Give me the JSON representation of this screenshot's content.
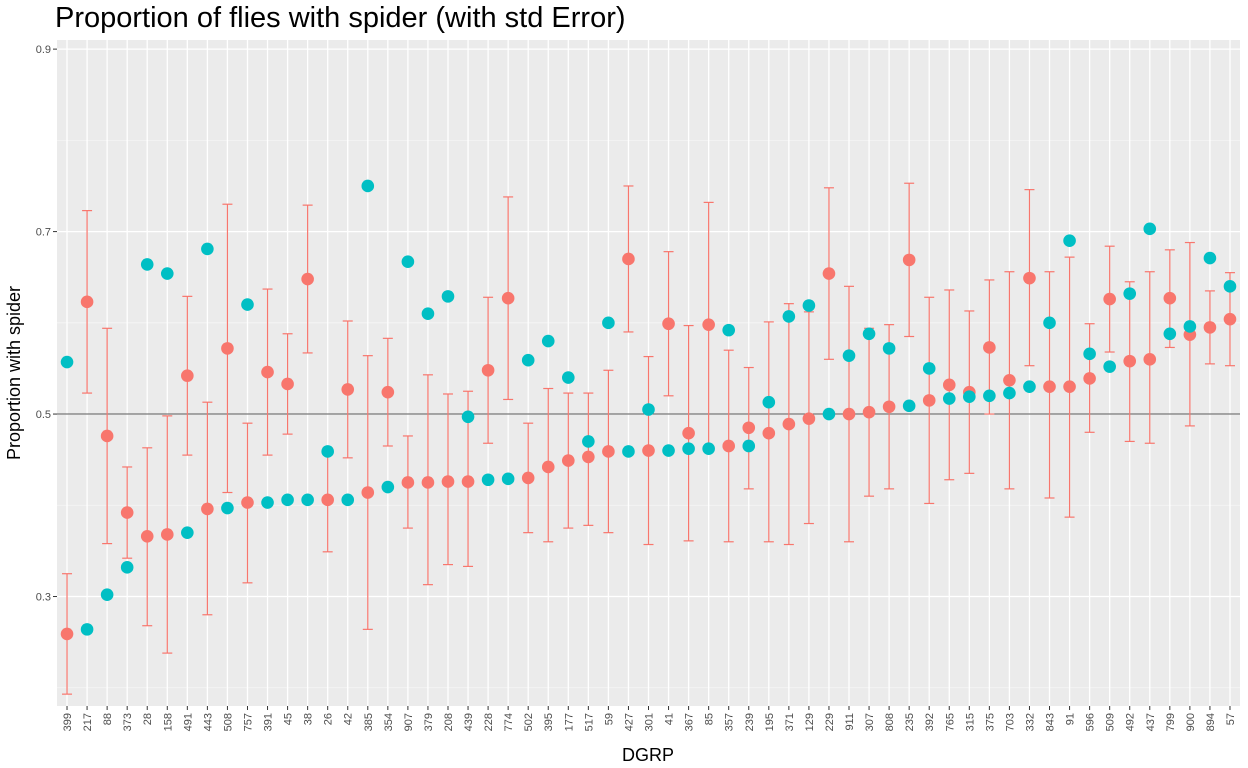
{
  "chart_data": {
    "type": "scatter",
    "title": "Proportion of flies with spider (with std Error)",
    "xlabel": "DGRP",
    "ylabel": "Proportion with spider",
    "ylim": [
      0.18,
      0.91
    ],
    "yticks": [
      0.3,
      0.5,
      0.7,
      0.9
    ],
    "yticklabels": [
      "0.3",
      "0.5",
      "0.7",
      "0.9"
    ],
    "reference_line": 0.5,
    "grid": true,
    "legend": "none",
    "categories": [
      "399",
      "217",
      "88",
      "373",
      "28",
      "158",
      "491",
      "443",
      "508",
      "757",
      "391",
      "45",
      "38",
      "26",
      "42",
      "385",
      "354",
      "907",
      "379",
      "208",
      "439",
      "228",
      "774",
      "502",
      "395",
      "177",
      "517",
      "59",
      "427",
      "301",
      "41",
      "367",
      "85",
      "357",
      "239",
      "195",
      "371",
      "129",
      "229",
      "911",
      "307",
      "808",
      "235",
      "392",
      "765",
      "315",
      "375",
      "703",
      "332",
      "843",
      "91",
      "596",
      "509",
      "492",
      "437",
      "799",
      "900",
      "894",
      "57"
    ],
    "series": [
      {
        "color": "#F8766D",
        "values": [
          0.259,
          0.623,
          0.476,
          0.392,
          0.366,
          0.368,
          0.542,
          0.396,
          0.572,
          0.403,
          0.546,
          0.533,
          0.648,
          0.406,
          0.527,
          0.414,
          0.524,
          0.425,
          0.425,
          0.426,
          0.426,
          0.548,
          0.627,
          0.43,
          0.442,
          0.449,
          0.453,
          0.459,
          0.67,
          0.46,
          0.599,
          0.479,
          0.598,
          0.465,
          0.485,
          0.479,
          0.489,
          0.495,
          0.654,
          0.5,
          0.502,
          0.508,
          0.669,
          0.515,
          0.532,
          0.524,
          0.573,
          0.537,
          0.649,
          0.53,
          0.53,
          0.539,
          0.626,
          0.558,
          0.56,
          0.627,
          0.587,
          0.595,
          0.604
        ],
        "lower": [
          0.193,
          0.523,
          0.358,
          0.342,
          0.268,
          0.238,
          0.455,
          0.28,
          0.414,
          0.315,
          0.455,
          0.478,
          0.567,
          0.349,
          0.452,
          0.264,
          0.465,
          0.375,
          0.313,
          0.335,
          0.333,
          0.468,
          0.516,
          0.37,
          0.36,
          0.375,
          0.378,
          0.37,
          0.59,
          0.357,
          0.52,
          0.361,
          0.463,
          0.36,
          0.418,
          0.36,
          0.357,
          0.38,
          0.56,
          0.36,
          0.41,
          0.418,
          0.585,
          0.402,
          0.428,
          0.435,
          0.5,
          0.418,
          0.553,
          0.408,
          0.387,
          0.48,
          0.568,
          0.47,
          0.468,
          0.573,
          0.487,
          0.555,
          0.553
        ],
        "upper": [
          0.325,
          0.723,
          0.594,
          0.442,
          0.463,
          0.498,
          0.629,
          0.513,
          0.73,
          0.49,
          0.637,
          0.588,
          0.729,
          0.463,
          0.602,
          0.564,
          0.583,
          0.476,
          0.543,
          0.522,
          0.525,
          0.628,
          0.738,
          0.49,
          0.528,
          0.523,
          0.523,
          0.548,
          0.75,
          0.563,
          0.678,
          0.597,
          0.732,
          0.57,
          0.551,
          0.601,
          0.621,
          0.612,
          0.748,
          0.64,
          0.594,
          0.598,
          0.753,
          0.628,
          0.636,
          0.613,
          0.647,
          0.656,
          0.746,
          0.656,
          0.672,
          0.599,
          0.684,
          0.645,
          0.656,
          0.68,
          0.688,
          0.635,
          0.655
        ]
      },
      {
        "color": "#00BFC4",
        "values": [
          0.557,
          0.264,
          0.302,
          0.332,
          0.664,
          0.654,
          0.37,
          0.681,
          0.397,
          0.62,
          0.403,
          0.406,
          0.406,
          0.459,
          0.406,
          0.75,
          0.42,
          0.667,
          0.61,
          0.629,
          0.497,
          0.428,
          0.429,
          0.559,
          0.58,
          0.54,
          0.47,
          0.6,
          0.459,
          0.505,
          0.46,
          0.462,
          0.462,
          0.592,
          0.465,
          0.513,
          0.607,
          0.619,
          0.5,
          0.564,
          0.588,
          0.572,
          0.509,
          0.55,
          0.517,
          0.519,
          0.52,
          0.523,
          0.53,
          0.6,
          0.69,
          0.566,
          0.552,
          0.632,
          0.703,
          0.588,
          0.596,
          0.671,
          0.64
        ]
      }
    ]
  }
}
